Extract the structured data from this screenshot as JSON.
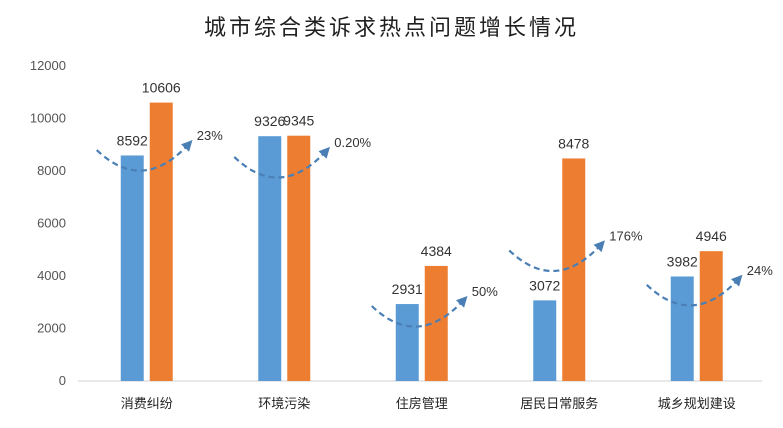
{
  "chart_data": {
    "type": "bar",
    "title": "城市综合类诉求热点问题增长情况",
    "categories": [
      "消费纠纷",
      "环境污染",
      "住房管理",
      "居民日常服务",
      "城乡规划建设"
    ],
    "series": [
      {
        "values": [
          8592,
          9326,
          2931,
          3072,
          3982
        ],
        "color": "#5b9bd5"
      },
      {
        "values": [
          10606,
          9345,
          4384,
          8478,
          4946
        ],
        "color": "#ed7d31"
      }
    ],
    "growth_labels": [
      "23%",
      "0.20%",
      "50%",
      "176%",
      "24%"
    ],
    "arrow_color": "#4a7fb5",
    "ylim": [
      0,
      12000
    ],
    "yticks": [
      0,
      2000,
      4000,
      6000,
      8000,
      10000,
      12000
    ],
    "grid": false,
    "xlabel": "",
    "ylabel": ""
  }
}
